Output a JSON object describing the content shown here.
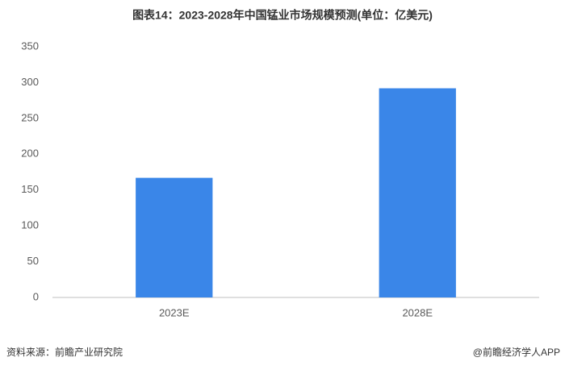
{
  "chart_data": {
    "type": "bar",
    "title": "图表14：2023-2028年中国锰业市场规模预测(单位：亿美元)",
    "categories": [
      "2023E",
      "2028E"
    ],
    "values": [
      167,
      292
    ],
    "color": "#3a86e8",
    "ylim": [
      0,
      350
    ],
    "yticks": [
      0,
      50,
      100,
      150,
      200,
      250,
      300,
      350
    ],
    "grid": false
  },
  "footer": {
    "source": "资料来源：前瞻产业研究院",
    "brand": "@前瞻经济学人APP"
  }
}
